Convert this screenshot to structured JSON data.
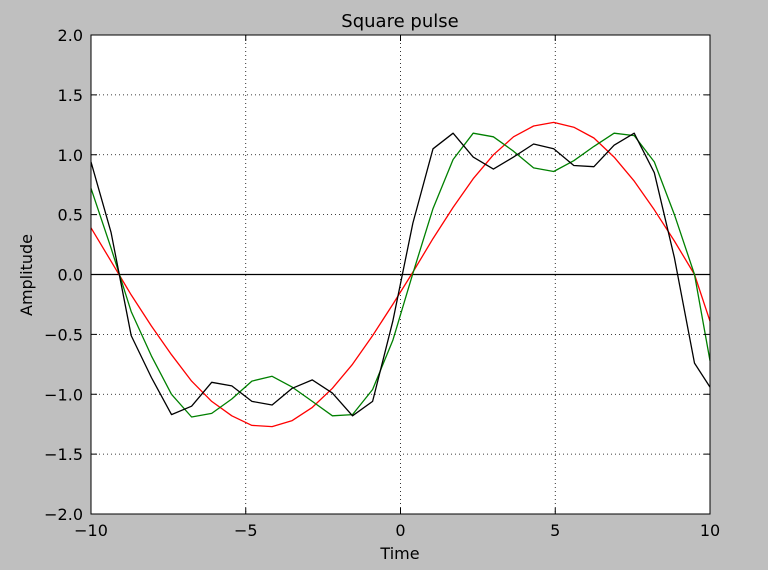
{
  "chart_data": {
    "type": "line",
    "title": "Square pulse",
    "xlabel": "Time",
    "ylabel": "Amplitude",
    "xlim": [
      -10,
      10
    ],
    "ylim": [
      -2.0,
      2.0
    ],
    "grid": true,
    "x_ticks": [
      {
        "value": -10,
        "label": "−10"
      },
      {
        "value": -5,
        "label": "−5"
      },
      {
        "value": 0,
        "label": "0"
      },
      {
        "value": 5,
        "label": "5"
      },
      {
        "value": 10,
        "label": "10"
      }
    ],
    "y_ticks": [
      {
        "value": 2.0,
        "label": "2.0"
      },
      {
        "value": 1.5,
        "label": "1.5"
      },
      {
        "value": 1.0,
        "label": "1.0"
      },
      {
        "value": 0.5,
        "label": "0.5"
      },
      {
        "value": 0.0,
        "label": "0.0"
      },
      {
        "value": -0.5,
        "label": "−0.5"
      },
      {
        "value": -1.0,
        "label": "−1.0"
      },
      {
        "value": -1.5,
        "label": "−1.5"
      },
      {
        "value": -2.0,
        "label": "−2.0"
      }
    ],
    "zero_line": {
      "y": 0,
      "color": "#000000"
    },
    "series": [
      {
        "color": "#ff0000",
        "x": [
          -10.0,
          -9.35,
          -8.7,
          -8.05,
          -7.4,
          -6.75,
          -6.1,
          -5.45,
          -4.8,
          -4.15,
          -3.5,
          -2.85,
          -2.2,
          -1.55,
          -0.9,
          -0.25,
          0.4,
          1.05,
          1.7,
          2.35,
          3.0,
          3.65,
          4.3,
          4.95,
          5.6,
          6.25,
          6.9,
          7.55,
          8.2,
          8.85,
          9.5,
          10.0
        ],
        "values": [
          0.39,
          0.11,
          -0.17,
          -0.43,
          -0.67,
          -0.89,
          -1.06,
          -1.18,
          -1.26,
          -1.27,
          -1.22,
          -1.11,
          -0.95,
          -0.75,
          -0.51,
          -0.25,
          0.02,
          0.3,
          0.56,
          0.8,
          1.0,
          1.15,
          1.24,
          1.27,
          1.23,
          1.14,
          0.98,
          0.78,
          0.54,
          0.28,
          0.0,
          -0.39
        ]
      },
      {
        "color": "#008000",
        "x": [
          -10.0,
          -9.35,
          -8.7,
          -8.05,
          -7.4,
          -6.75,
          -6.1,
          -5.45,
          -4.8,
          -4.15,
          -3.5,
          -2.85,
          -2.2,
          -1.55,
          -0.9,
          -0.25,
          0.4,
          1.05,
          1.7,
          2.35,
          3.0,
          3.65,
          4.3,
          4.95,
          5.6,
          6.25,
          6.9,
          7.55,
          8.2,
          8.85,
          9.5,
          10.0
        ],
        "values": [
          0.72,
          0.22,
          -0.31,
          -0.68,
          -1.0,
          -1.19,
          -1.16,
          -1.04,
          -0.89,
          -0.85,
          -0.94,
          -1.06,
          -1.18,
          -1.17,
          -0.96,
          -0.55,
          0.01,
          0.55,
          0.96,
          1.18,
          1.15,
          1.03,
          0.89,
          0.86,
          0.95,
          1.07,
          1.18,
          1.16,
          0.94,
          0.5,
          0.0,
          -0.72
        ]
      },
      {
        "color": "#000000",
        "x": [
          -10.0,
          -9.35,
          -8.7,
          -8.05,
          -7.4,
          -6.75,
          -6.1,
          -5.45,
          -4.8,
          -4.15,
          -3.5,
          -2.85,
          -2.2,
          -1.55,
          -0.9,
          -0.25,
          0.4,
          1.05,
          1.7,
          2.35,
          3.0,
          3.65,
          4.3,
          4.95,
          5.6,
          6.25,
          6.9,
          7.55,
          8.2,
          8.85,
          9.5,
          10.0
        ],
        "values": [
          0.94,
          0.35,
          -0.51,
          -0.86,
          -1.17,
          -1.1,
          -0.9,
          -0.93,
          -1.06,
          -1.09,
          -0.95,
          -0.88,
          -0.99,
          -1.18,
          -1.06,
          -0.39,
          0.43,
          1.05,
          1.18,
          0.98,
          0.88,
          0.98,
          1.09,
          1.05,
          0.91,
          0.9,
          1.08,
          1.18,
          0.85,
          0.14,
          -0.74,
          -0.94
        ]
      }
    ]
  }
}
